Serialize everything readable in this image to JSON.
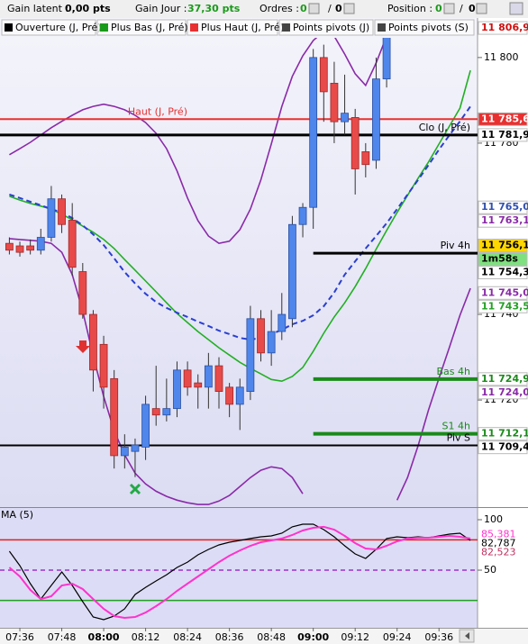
{
  "toolbar": [
    {
      "text": "Gain latent :",
      "color": "#000000",
      "bold": false
    },
    {
      "text": "0,00 pts",
      "color": "#000000",
      "bold": true
    },
    {
      "text": "Gain Jour :",
      "color": "#000000",
      "bold": false
    },
    {
      "text": "37,30 pts",
      "color": "#1a9a1a",
      "bold": true
    },
    {
      "text": "Ordres :",
      "color": "#000000",
      "bold": false
    },
    {
      "text": "0",
      "color": "#1a9a1a",
      "bold": true
    },
    {
      "text": "/",
      "color": "#000000",
      "bold": false
    },
    {
      "text": "0",
      "color": "#000000",
      "bold": true
    },
    {
      "text": "Position :",
      "color": "#000000",
      "bold": false
    },
    {
      "text": "0",
      "color": "#1a9a1a",
      "bold": true
    },
    {
      "text": "/",
      "color": "#000000",
      "bold": false
    },
    {
      "text": "0",
      "color": "#000000",
      "bold": true
    }
  ],
  "legend": [
    {
      "text": "Ouverture (J, Pré)",
      "color": "#000000"
    },
    {
      "text": "Plus Bas (J, Pré)",
      "color": "#1a9a1a"
    },
    {
      "text": "Plus Haut (J, Pré)",
      "color": "#e83030"
    },
    {
      "text": "Points pivots (J)",
      "color": "#444444"
    },
    {
      "text": "Points pivots (S)",
      "color": "#444444"
    }
  ],
  "chart_data": [
    {
      "type": "candlestick",
      "categories": [
        null,
        "07:36",
        null,
        null,
        null,
        "07:48",
        null,
        null,
        null,
        "08:00",
        null,
        null,
        null,
        "08:12",
        null,
        null,
        null,
        "08:24",
        null,
        null,
        null,
        "08:36",
        null,
        null,
        null,
        "08:48",
        null,
        null,
        null,
        "09:00",
        null,
        null,
        null,
        "09:12",
        null,
        null,
        null,
        "09:24",
        null,
        null,
        null,
        "09:36",
        null,
        null,
        null
      ],
      "open": [
        11756.6,
        11756,
        11756,
        11755,
        11758,
        11767,
        11762,
        11750,
        11740,
        11733,
        11725,
        11707,
        11708,
        11709,
        11718,
        11716.5,
        11718,
        11727,
        11724,
        11723,
        11728,
        11723,
        11719,
        11722,
        11739,
        11731,
        11736,
        11739,
        11761,
        11765,
        11800,
        11794,
        11785,
        11786,
        11778,
        11776,
        11795,
        null,
        null,
        null,
        null,
        null,
        null,
        null,
        null
      ],
      "high": [
        11758,
        11757,
        11757.5,
        11760,
        11770,
        11768,
        11766,
        11752,
        11741,
        11735,
        11727,
        11712,
        11711,
        11721,
        11728,
        11725,
        11729,
        11729,
        11726,
        11731,
        11730,
        11724,
        11725,
        11742,
        11741,
        11741,
        11745,
        11763,
        11766,
        11802,
        11803,
        11799,
        11796,
        11788,
        11780,
        11800,
        11807,
        null,
        null,
        null,
        null,
        null,
        null,
        null,
        null
      ],
      "low": [
        11754,
        11753.5,
        11754,
        11754,
        11757,
        11759,
        11749,
        11739,
        11722,
        11718,
        11704,
        11704,
        11702,
        11706,
        11714,
        11715,
        11716,
        11721,
        11718,
        11718,
        11718,
        11716,
        11713,
        11720,
        11729,
        11728,
        11734,
        11737,
        11758,
        11760,
        11785,
        11780,
        11782,
        11768,
        11772,
        11774,
        11793,
        null,
        null,
        null,
        null,
        null,
        null,
        null,
        null
      ],
      "close": [
        11755,
        11754.5,
        11755,
        11758,
        11767,
        11761,
        11751,
        11740,
        11727,
        11723,
        11707,
        11709,
        11709.5,
        11719,
        11716.5,
        11718,
        11727,
        11723,
        11723,
        11728,
        11722,
        11719,
        11723,
        11739,
        11731,
        11736,
        11740,
        11761,
        11765,
        11800,
        11792,
        11785,
        11787,
        11774,
        11775,
        11795,
        11806,
        null,
        null,
        null,
        null,
        null,
        null,
        null,
        null
      ],
      "up_color": "#4f86ec",
      "down_color": "#e84a4a",
      "ylim": [
        11695.2,
        11804.6
      ],
      "yticks": [
        {
          "value": 11800,
          "label": "11 800"
        },
        {
          "value": 11780,
          "label": "11 780"
        },
        {
          "value": 11740,
          "label": "11 740"
        },
        {
          "value": 11720,
          "label": "11 720"
        }
      ],
      "lines": [
        {
          "color": "#22b022",
          "dashed": false,
          "values": [
            11767.6,
            11766.7,
            11765.9,
            11765.3,
            11764.6,
            11763.4,
            11762.1,
            11760.6,
            11759.2,
            11757.5,
            11755.4,
            11752.8,
            11750.3,
            11747.8,
            11745.3,
            11742.7,
            11740.2,
            11738.1,
            11736,
            11734.1,
            11732.2,
            11730.5,
            11728.8,
            11727.4,
            11726.1,
            11724.8,
            11724.4,
            11725.5,
            11727.6,
            11731.4,
            11735.6,
            11739.4,
            11742.7,
            11746.5,
            11750.7,
            11755.2,
            11759.6,
            11763.8,
            11767.8,
            11771.8,
            11775.6,
            11779.8,
            11784,
            11788.2,
            11797
          ]
        },
        {
          "color": "#2a3fd0",
          "dashed": true,
          "values": [
            11768,
            11767.2,
            11766.3,
            11765.5,
            11764.6,
            11763.8,
            11762.5,
            11760.8,
            11758.7,
            11756.2,
            11753.1,
            11749.9,
            11747.2,
            11744.8,
            11742.9,
            11741.5,
            11740.4,
            11739.4,
            11738.3,
            11737.3,
            11736.2,
            11735.4,
            11734.5,
            11734.1,
            11734.5,
            11735.4,
            11736.4,
            11737.7,
            11738.5,
            11739.8,
            11741.9,
            11745.1,
            11749.3,
            11752.4,
            11755.4,
            11758.3,
            11761.3,
            11764.6,
            11768,
            11771.4,
            11774.9,
            11778.5,
            11781.9,
            11785.1,
            11788.6
          ]
        },
        {
          "color": "#8a2aa8",
          "dashed": false,
          "values": [
            11777.3,
            11778.7,
            11780.2,
            11781.9,
            11783.6,
            11785.1,
            11786.5,
            11787.8,
            11788.6,
            11789.1,
            11788.6,
            11787.8,
            11786.5,
            11784.8,
            11782.3,
            11778.7,
            11773.5,
            11767.2,
            11761.9,
            11758.3,
            11756.6,
            11757.1,
            11759.8,
            11764.6,
            11771.4,
            11779.8,
            11788.6,
            11795.6,
            11800.4,
            11804,
            11806.1,
            11805,
            11800.8,
            11796.2,
            11793.5,
            11798.7,
            11805,
            null,
            null,
            null,
            null,
            null,
            null,
            null,
            null
          ]
        },
        {
          "color": "#8a2aa8",
          "dashed": false,
          "values": [
            11757.7,
            11757.5,
            11757.3,
            11757.1,
            11756.6,
            11754.5,
            11749.3,
            11740.8,
            11730.3,
            11720.8,
            11712.8,
            11707.2,
            11702.9,
            11700.4,
            11698.7,
            11697.5,
            11696.6,
            11696,
            11695.6,
            11695.6,
            11696.4,
            11697.7,
            11699.8,
            11701.9,
            11703.6,
            11704.4,
            11704,
            11701.9,
            11698.1,
            null,
            null,
            null,
            null,
            null,
            null,
            null,
            null,
            11696.6,
            11701.9,
            11709.3,
            11717.7,
            11725.1,
            11732.4,
            11739.8,
            11746.1
          ]
        }
      ],
      "levels": [
        {
          "name": "Haut (J, Pré)",
          "value": 11785.6,
          "color": "#e83030",
          "width": 2
        },
        {
          "name": "Clo (J, Pré)",
          "value": 11781.9,
          "color": "#000000",
          "width": 3
        },
        {
          "name": "Piv 4h",
          "value": 11754.3,
          "color": "#000000",
          "width": 3,
          "from": "09:00"
        },
        {
          "name": "Bas 4h",
          "value": 11724.9,
          "color": "#1a8a1a",
          "width": 4,
          "from": "09:00"
        },
        {
          "name": "S1 4h",
          "value": 11712.1,
          "color": "#1a8a1a",
          "width": 4,
          "from": "09:00"
        },
        {
          "name": "Piv S",
          "value": 11709.4,
          "color": "#000000",
          "width": 2
        }
      ],
      "price_labels": [
        {
          "label": "11 806,9",
          "value": 11806.9,
          "color": "#d01010",
          "background": "#ffffff"
        },
        {
          "label": "11 785,6",
          "value": 11785.6,
          "color": "#ffffff",
          "background": "#e83030"
        },
        {
          "label": "11 781,9",
          "value": 11781.9,
          "color": "#000000",
          "background": "#ffffff"
        },
        {
          "label": "11 765,0",
          "value": 11765,
          "color": "#3050b0",
          "background": "#ffffff"
        },
        {
          "label": "11 763,1",
          "value": 11763.1,
          "color": "#8a2aa8",
          "background": "#ffffff"
        },
        {
          "label": "11 756,1",
          "value": 11756.1,
          "color": "#000000",
          "background": "#ffd700"
        },
        {
          "label": "1m58s",
          "color": "#000000",
          "background": "#7ee07e"
        },
        {
          "label": "11 754,3",
          "value": 11754.3,
          "color": "#000000",
          "background": "#ffffff"
        },
        {
          "label": "11 745,0",
          "value": 11745,
          "color": "#8a2aa8",
          "background": "#ffffff"
        },
        {
          "label": "11 743,5",
          "value": 11743.5,
          "color": "#22a022",
          "background": "#ffffff"
        },
        {
          "label": "11 724,9",
          "value": 11724.9,
          "color": "#1a8a1a",
          "background": "#ffffff"
        },
        {
          "label": "11 724,0",
          "value": 11724,
          "color": "#8a2aa8",
          "background": "#ffffff"
        },
        {
          "label": "11 712,1",
          "value": 11712.1,
          "color": "#1a8a1a",
          "background": "#ffffff"
        },
        {
          "label": "11 709,4",
          "value": 11709.4,
          "color": "#000000",
          "background": "#ffffff"
        }
      ]
    },
    {
      "type": "oscillator",
      "title": "MA (5)",
      "ylim": [
        -7.1,
        110.7
      ],
      "yticks": [
        100,
        50
      ],
      "series": [
        {
          "color": "#000000",
          "values": [
            68.8,
            54.5,
            36.6,
            21.4,
            34.8,
            48.2,
            34.8,
            18.8,
            3.6,
            0.9,
            4.5,
            11.6,
            25.9,
            33,
            39.3,
            45.5,
            52.7,
            58,
            65.2,
            70.5,
            75,
            77.7,
            79.5,
            81.3,
            83,
            83.9,
            86.6,
            92.9,
            95.5,
            95.5,
            90.2,
            83,
            74.1,
            66.1,
            61.6,
            70.5,
            81.3,
            83,
            82.1,
            83,
            82.1,
            83.9,
            85.7,
            86.6,
            79.5
          ]
        },
        {
          "color": "#ff33cc",
          "values": [
            52.7,
            43.8,
            30.4,
            21.4,
            24.1,
            34.8,
            36.6,
            31.3,
            21.4,
            11.6,
            4.5,
            2.7,
            3.6,
            8,
            14.3,
            21.4,
            29.5,
            36.6,
            43.8,
            50.9,
            58,
            64.3,
            69.6,
            74.1,
            77.7,
            79.5,
            81.3,
            84.8,
            89.3,
            92,
            92.9,
            90.2,
            83.9,
            76.8,
            71.4,
            70.5,
            74.1,
            78.6,
            81.3,
            82.1,
            82.1,
            83,
            83.9,
            83,
            81.3
          ]
        }
      ],
      "levels": [
        {
          "value": 80,
          "color": "#e02020",
          "dashed": false
        },
        {
          "value": 50,
          "color": "#9933cc",
          "dashed": true
        },
        {
          "value": 20,
          "color": "#22a022",
          "dashed": false
        }
      ],
      "price_labels": [
        {
          "label": "85,381",
          "value": 85.381,
          "color": "#ff33cc"
        },
        {
          "label": "82,787",
          "value": 82.787,
          "color": "#000000"
        },
        {
          "label": "82,523",
          "value": 82.523,
          "color": "#c03060"
        }
      ]
    }
  ]
}
